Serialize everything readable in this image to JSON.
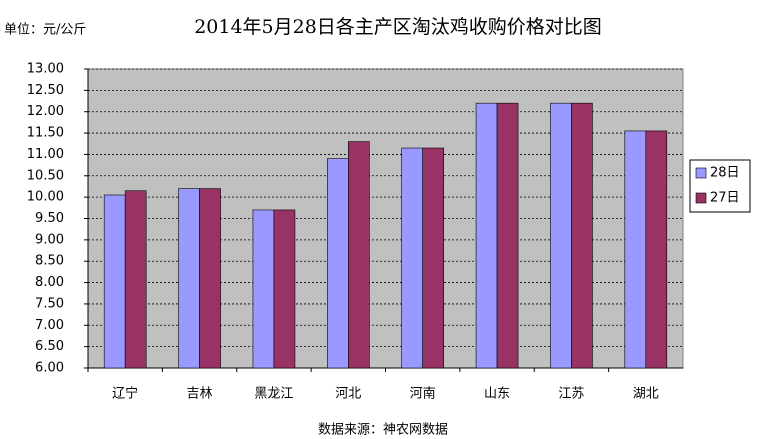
{
  "chart_data": {
    "type": "bar",
    "title": "2014年5月28日各主产区淘汰鸡收购价格对比图",
    "unit_label": "单位：元/公斤",
    "source": "数据来源：神农网数据",
    "categories": [
      "辽宁",
      "吉林",
      "黑龙江",
      "河北",
      "河南",
      "山东",
      "江苏",
      "湖北"
    ],
    "series": [
      {
        "name": "28日",
        "color": "#9999ff",
        "values": [
          10.05,
          10.2,
          9.7,
          10.9,
          11.15,
          12.2,
          12.2,
          11.55
        ]
      },
      {
        "name": "27日",
        "color": "#993366",
        "values": [
          10.15,
          10.2,
          9.7,
          11.3,
          11.15,
          12.2,
          12.2,
          11.55
        ]
      }
    ],
    "ylim": [
      6,
      13
    ],
    "yticks": [
      {
        "value": 6,
        "label": "6.00"
      },
      {
        "value": 6.5,
        "label": "6.50"
      },
      {
        "value": 7,
        "label": "7.00"
      },
      {
        "value": 7.5,
        "label": "7.50"
      },
      {
        "value": 8,
        "label": "8.00"
      },
      {
        "value": 8.5,
        "label": "8.50"
      },
      {
        "value": 9,
        "label": "9.00"
      },
      {
        "value": 9.5,
        "label": "9.50"
      },
      {
        "value": 10,
        "label": "10.00"
      },
      {
        "value": 10.5,
        "label": "10.50"
      },
      {
        "value": 11,
        "label": "11.00"
      },
      {
        "value": 11.5,
        "label": "11.50"
      },
      {
        "value": 12,
        "label": "12.00"
      },
      {
        "value": 12.5,
        "label": "12.50"
      },
      {
        "value": 13,
        "label": "13.00"
      }
    ],
    "grid": true,
    "legend": "right"
  }
}
